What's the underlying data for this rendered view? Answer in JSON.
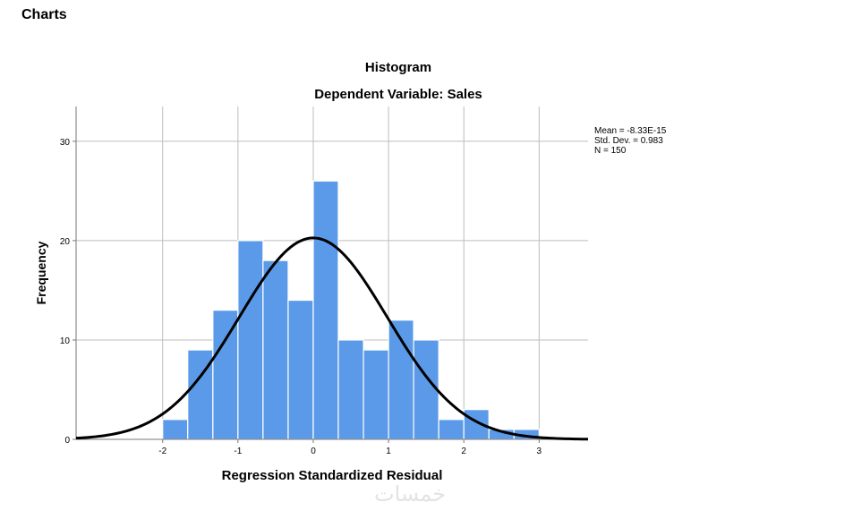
{
  "page": {
    "section_title": "Charts"
  },
  "chart_data": {
    "type": "histogram",
    "title": "Histogram",
    "subtitle": "Dependent Variable: Sales",
    "xlabel": "Regression Standardized Residual",
    "ylabel": "Frequency",
    "xlim": [
      -3.15,
      3.65
    ],
    "ylim": [
      0,
      33.5
    ],
    "xticks": [
      -2,
      -1,
      0,
      1,
      2,
      3
    ],
    "yticks": [
      0,
      10,
      20,
      30
    ],
    "grid": true,
    "bin_width": 0.333,
    "bins": [
      {
        "x0": -2.0,
        "x1": -1.667,
        "count": 2
      },
      {
        "x0": -1.667,
        "x1": -1.333,
        "count": 9
      },
      {
        "x0": -1.333,
        "x1": -1.0,
        "count": 13
      },
      {
        "x0": -1.0,
        "x1": -0.667,
        "count": 20
      },
      {
        "x0": -0.667,
        "x1": -0.333,
        "count": 18
      },
      {
        "x0": -0.333,
        "x1": 0.0,
        "count": 14
      },
      {
        "x0": 0.0,
        "x1": 0.333,
        "count": 26
      },
      {
        "x0": 0.333,
        "x1": 0.667,
        "count": 10
      },
      {
        "x0": 0.667,
        "x1": 1.0,
        "count": 9
      },
      {
        "x0": 1.0,
        "x1": 1.333,
        "count": 12
      },
      {
        "x0": 1.333,
        "x1": 1.667,
        "count": 10
      },
      {
        "x0": 1.667,
        "x1": 2.0,
        "count": 2
      },
      {
        "x0": 2.0,
        "x1": 2.333,
        "count": 3
      },
      {
        "x0": 2.333,
        "x1": 2.667,
        "count": 1
      },
      {
        "x0": 2.667,
        "x1": 3.0,
        "count": 1
      }
    ],
    "normal_curve": {
      "mean": 0,
      "sd": 0.983,
      "n": 150
    },
    "legend": {
      "mean": "Mean = -8.33E-15",
      "sd": "Std. Dev. = 0.983",
      "n": "N = 150"
    },
    "colors": {
      "bar": "#5b9ae8",
      "bar_edge": "#ffffff",
      "curve": "#000000",
      "grid": "#bdbdbd",
      "axis": "#777777"
    }
  },
  "watermark": "خمسات"
}
